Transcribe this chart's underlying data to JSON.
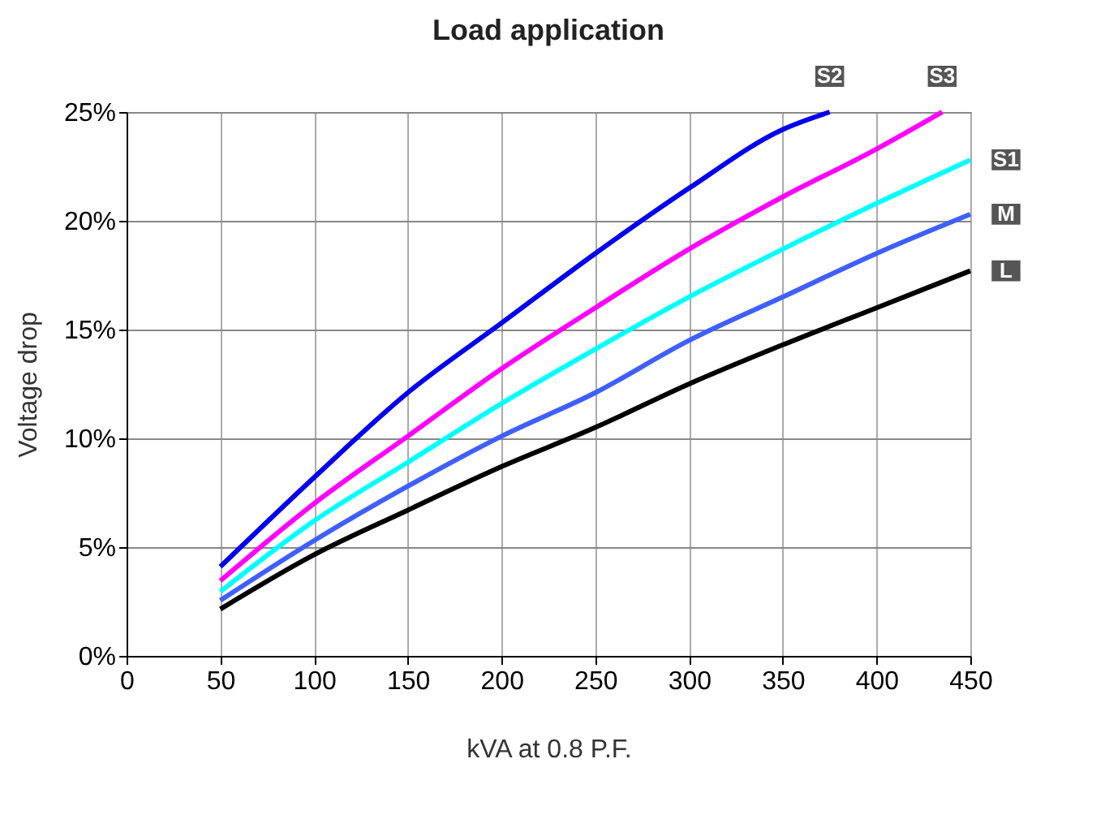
{
  "chart_data": {
    "type": "line",
    "title": "Load application",
    "xlabel": "kVA at 0.8 P.F.",
    "ylabel": "Voltage drop",
    "x": [
      50,
      100,
      150,
      200,
      250,
      300,
      350,
      375,
      400,
      435,
      450
    ],
    "series": [
      {
        "name": "S2",
        "color": "#0000ee",
        "values": [
          4.1,
          8.2,
          12.1,
          15.3,
          18.5,
          21.5,
          24.2,
          25.0,
          null,
          null,
          null
        ]
      },
      {
        "name": "S3",
        "color": "#ff00ff",
        "values": [
          3.45,
          7.0,
          10.1,
          13.2,
          16.0,
          18.7,
          21.1,
          null,
          23.3,
          25.0,
          null
        ]
      },
      {
        "name": "S1",
        "color": "#00ffff",
        "values": [
          2.95,
          6.2,
          8.9,
          11.6,
          14.1,
          16.5,
          18.7,
          null,
          20.8,
          null,
          22.8
        ]
      },
      {
        "name": "M",
        "color": "#3f5fff",
        "values": [
          2.55,
          5.3,
          7.8,
          10.1,
          12.1,
          14.5,
          16.5,
          null,
          18.5,
          null,
          20.3
        ]
      },
      {
        "name": "L",
        "color": "#000000",
        "values": [
          2.15,
          4.65,
          6.7,
          8.7,
          10.5,
          12.5,
          14.3,
          null,
          16.0,
          null,
          17.7
        ]
      }
    ],
    "xlim": [
      0,
      450
    ],
    "xticks": [
      0,
      50,
      100,
      150,
      200,
      250,
      300,
      350,
      400,
      450
    ],
    "ylim": [
      0,
      25
    ],
    "yticks": [
      {
        "value": 0,
        "label": "0%"
      },
      {
        "value": 5,
        "label": "5%"
      },
      {
        "value": 10,
        "label": "10%"
      },
      {
        "value": 15,
        "label": "15%"
      },
      {
        "value": 20,
        "label": "20%"
      },
      {
        "value": 25,
        "label": "25%"
      }
    ],
    "grid": true,
    "legend": false,
    "marker": "none",
    "line_style": "solid"
  }
}
